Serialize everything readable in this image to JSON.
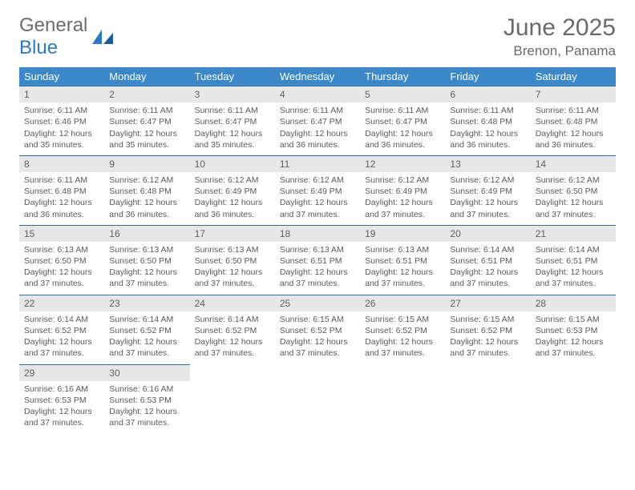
{
  "brand": {
    "line1": "General",
    "line2": "Blue"
  },
  "title": "June 2025",
  "location": "Brenon, Panama",
  "colors": {
    "header_bg": "#3b87c8",
    "header_text": "#ffffff",
    "row_divider": "#2f6fa8",
    "daynum_bg": "#e7e7e7",
    "text": "#5a5a5a",
    "brand_gray": "#6c6c6c",
    "brand_blue": "#2f78c4",
    "background": "#ffffff"
  },
  "weekdays": [
    "Sunday",
    "Monday",
    "Tuesday",
    "Wednesday",
    "Thursday",
    "Friday",
    "Saturday"
  ],
  "days": [
    {
      "n": 1,
      "sunrise": "6:11 AM",
      "sunset": "6:46 PM",
      "daylight": "12 hours and 35 minutes."
    },
    {
      "n": 2,
      "sunrise": "6:11 AM",
      "sunset": "6:47 PM",
      "daylight": "12 hours and 35 minutes."
    },
    {
      "n": 3,
      "sunrise": "6:11 AM",
      "sunset": "6:47 PM",
      "daylight": "12 hours and 35 minutes."
    },
    {
      "n": 4,
      "sunrise": "6:11 AM",
      "sunset": "6:47 PM",
      "daylight": "12 hours and 36 minutes."
    },
    {
      "n": 5,
      "sunrise": "6:11 AM",
      "sunset": "6:47 PM",
      "daylight": "12 hours and 36 minutes."
    },
    {
      "n": 6,
      "sunrise": "6:11 AM",
      "sunset": "6:48 PM",
      "daylight": "12 hours and 36 minutes."
    },
    {
      "n": 7,
      "sunrise": "6:11 AM",
      "sunset": "6:48 PM",
      "daylight": "12 hours and 36 minutes."
    },
    {
      "n": 8,
      "sunrise": "6:11 AM",
      "sunset": "6:48 PM",
      "daylight": "12 hours and 36 minutes."
    },
    {
      "n": 9,
      "sunrise": "6:12 AM",
      "sunset": "6:48 PM",
      "daylight": "12 hours and 36 minutes."
    },
    {
      "n": 10,
      "sunrise": "6:12 AM",
      "sunset": "6:49 PM",
      "daylight": "12 hours and 36 minutes."
    },
    {
      "n": 11,
      "sunrise": "6:12 AM",
      "sunset": "6:49 PM",
      "daylight": "12 hours and 37 minutes."
    },
    {
      "n": 12,
      "sunrise": "6:12 AM",
      "sunset": "6:49 PM",
      "daylight": "12 hours and 37 minutes."
    },
    {
      "n": 13,
      "sunrise": "6:12 AM",
      "sunset": "6:49 PM",
      "daylight": "12 hours and 37 minutes."
    },
    {
      "n": 14,
      "sunrise": "6:12 AM",
      "sunset": "6:50 PM",
      "daylight": "12 hours and 37 minutes."
    },
    {
      "n": 15,
      "sunrise": "6:13 AM",
      "sunset": "6:50 PM",
      "daylight": "12 hours and 37 minutes."
    },
    {
      "n": 16,
      "sunrise": "6:13 AM",
      "sunset": "6:50 PM",
      "daylight": "12 hours and 37 minutes."
    },
    {
      "n": 17,
      "sunrise": "6:13 AM",
      "sunset": "6:50 PM",
      "daylight": "12 hours and 37 minutes."
    },
    {
      "n": 18,
      "sunrise": "6:13 AM",
      "sunset": "6:51 PM",
      "daylight": "12 hours and 37 minutes."
    },
    {
      "n": 19,
      "sunrise": "6:13 AM",
      "sunset": "6:51 PM",
      "daylight": "12 hours and 37 minutes."
    },
    {
      "n": 20,
      "sunrise": "6:14 AM",
      "sunset": "6:51 PM",
      "daylight": "12 hours and 37 minutes."
    },
    {
      "n": 21,
      "sunrise": "6:14 AM",
      "sunset": "6:51 PM",
      "daylight": "12 hours and 37 minutes."
    },
    {
      "n": 22,
      "sunrise": "6:14 AM",
      "sunset": "6:52 PM",
      "daylight": "12 hours and 37 minutes."
    },
    {
      "n": 23,
      "sunrise": "6:14 AM",
      "sunset": "6:52 PM",
      "daylight": "12 hours and 37 minutes."
    },
    {
      "n": 24,
      "sunrise": "6:14 AM",
      "sunset": "6:52 PM",
      "daylight": "12 hours and 37 minutes."
    },
    {
      "n": 25,
      "sunrise": "6:15 AM",
      "sunset": "6:52 PM",
      "daylight": "12 hours and 37 minutes."
    },
    {
      "n": 26,
      "sunrise": "6:15 AM",
      "sunset": "6:52 PM",
      "daylight": "12 hours and 37 minutes."
    },
    {
      "n": 27,
      "sunrise": "6:15 AM",
      "sunset": "6:52 PM",
      "daylight": "12 hours and 37 minutes."
    },
    {
      "n": 28,
      "sunrise": "6:15 AM",
      "sunset": "6:53 PM",
      "daylight": "12 hours and 37 minutes."
    },
    {
      "n": 29,
      "sunrise": "6:16 AM",
      "sunset": "6:53 PM",
      "daylight": "12 hours and 37 minutes."
    },
    {
      "n": 30,
      "sunrise": "6:16 AM",
      "sunset": "6:53 PM",
      "daylight": "12 hours and 37 minutes."
    }
  ],
  "labels": {
    "sunrise": "Sunrise:",
    "sunset": "Sunset:",
    "daylight": "Daylight:"
  },
  "layout": {
    "start_weekday": 0,
    "columns": 7
  }
}
